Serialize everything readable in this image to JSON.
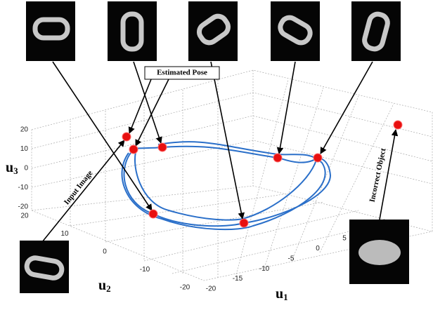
{
  "annotations": {
    "estimated_pose": "Estimated Pose",
    "input_image": "Input Image",
    "incorrect_object": "Incorrect Object"
  },
  "axes": {
    "u3": {
      "label": "u",
      "subscript": "3",
      "ticks": [
        "20",
        "10",
        "0",
        "-10",
        "-20"
      ]
    },
    "u2": {
      "label": "u",
      "subscript": "2",
      "ticks": [
        "20",
        "10",
        "0",
        "-10",
        "-20"
      ]
    },
    "u1": {
      "label": "u",
      "subscript": "1",
      "ticks": [
        "-20",
        "-15",
        "-10",
        "-5",
        "0",
        "5"
      ]
    }
  }
}
